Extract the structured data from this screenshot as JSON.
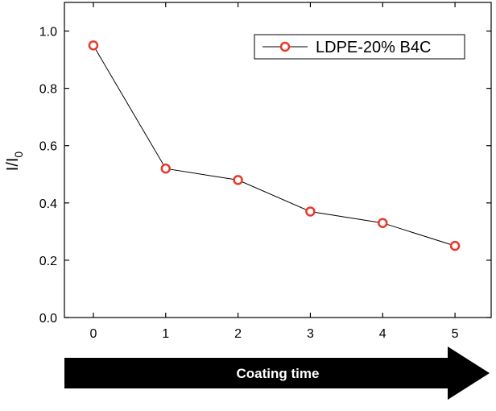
{
  "chart_data": {
    "type": "line",
    "x": [
      0,
      1,
      2,
      3,
      4,
      5
    ],
    "series": [
      {
        "name": "LDPE-20% B4C",
        "values": [
          0.95,
          0.52,
          0.48,
          0.37,
          0.33,
          0.25
        ]
      }
    ],
    "xticks": [
      "0",
      "1",
      "2",
      "3",
      "4",
      "5"
    ],
    "yticks": [
      "0.0",
      "0.2",
      "0.4",
      "0.6",
      "0.8",
      "1.0"
    ],
    "ylabel": "I/I",
    "ylabel_subscript": "0",
    "xlim": [
      -0.4,
      5.5
    ],
    "ylim": [
      0,
      1.1
    ],
    "legend_position": "top-right",
    "grid": false,
    "arrow_label": "Coating time",
    "colors": {
      "marker": "#e8392b",
      "line": "#000000",
      "arrow": "#000000"
    }
  }
}
